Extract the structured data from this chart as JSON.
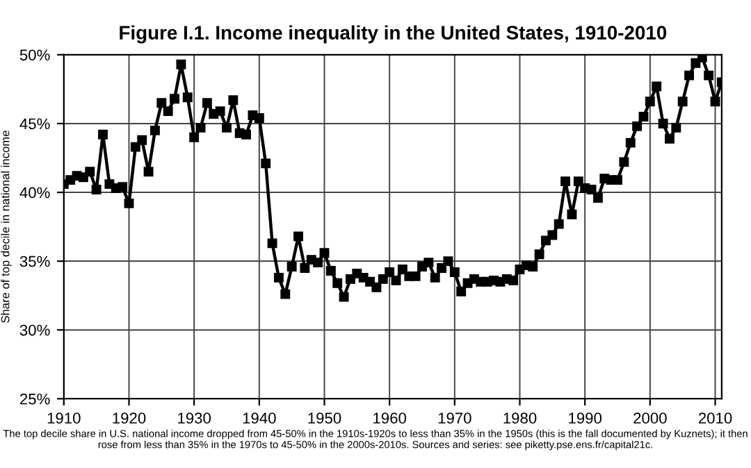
{
  "chart_data": {
    "type": "line",
    "title": "Figure I.1. Income inequality in the United States, 1910-2010",
    "ylabel": "Share of top decile in national income",
    "annotations": [
      "The top decile share in U.S. national income dropped from 45-50% in the 1910s-1920s to less than 35% in the 1950s (this is the fall documented by Kuznets); it then rose from less than 35% in the 1970s to 45-50% in the 2000s-2010s. Sources and series: see piketty.pse.ens.fr/capital21c."
    ],
    "x": [
      1910,
      1911,
      1912,
      1913,
      1914,
      1915,
      1916,
      1917,
      1918,
      1919,
      1920,
      1921,
      1922,
      1923,
      1924,
      1925,
      1926,
      1927,
      1928,
      1929,
      1930,
      1931,
      1932,
      1933,
      1934,
      1935,
      1936,
      1937,
      1938,
      1939,
      1940,
      1941,
      1942,
      1943,
      1944,
      1945,
      1946,
      1947,
      1948,
      1949,
      1950,
      1951,
      1952,
      1953,
      1954,
      1955,
      1956,
      1957,
      1958,
      1959,
      1960,
      1961,
      1962,
      1963,
      1964,
      1965,
      1966,
      1967,
      1968,
      1969,
      1970,
      1971,
      1972,
      1973,
      1974,
      1975,
      1976,
      1977,
      1978,
      1979,
      1980,
      1981,
      1982,
      1983,
      1984,
      1985,
      1986,
      1987,
      1988,
      1989,
      1990,
      1991,
      1992,
      1993,
      1994,
      1995,
      1996,
      1997,
      1998,
      1999,
      2000,
      2001,
      2002,
      2003,
      2004,
      2005,
      2006,
      2007,
      2008,
      2009,
      2010,
      2011
    ],
    "series": [
      {
        "color": "#000000",
        "values": [
          40.6,
          40.9,
          41.2,
          41.1,
          41.5,
          40.2,
          44.2,
          40.6,
          40.3,
          40.4,
          39.2,
          43.3,
          43.8,
          41.5,
          44.5,
          46.5,
          45.9,
          46.8,
          49.3,
          46.9,
          44.0,
          44.7,
          46.5,
          45.7,
          45.9,
          44.7,
          46.7,
          44.3,
          44.2,
          45.6,
          45.4,
          42.1,
          36.3,
          33.8,
          32.6,
          34.6,
          36.8,
          34.5,
          35.1,
          34.9,
          35.6,
          34.3,
          33.4,
          32.4,
          33.7,
          34.1,
          33.8,
          33.5,
          33.1,
          33.7,
          34.2,
          33.6,
          34.4,
          33.9,
          33.9,
          34.6,
          34.9,
          33.8,
          34.5,
          35.0,
          34.2,
          32.8,
          33.4,
          33.7,
          33.5,
          33.5,
          33.6,
          33.5,
          33.7,
          33.6,
          34.4,
          34.7,
          34.6,
          35.5,
          36.5,
          36.9,
          37.7,
          40.8,
          38.4,
          40.8,
          40.3,
          40.2,
          39.6,
          41.0,
          40.9,
          40.9,
          42.2,
          43.6,
          44.8,
          45.5,
          46.6,
          47.7,
          45.0,
          43.9,
          44.7,
          46.6,
          48.5,
          49.4,
          49.8,
          48.5,
          46.6,
          48.0
        ]
      }
    ],
    "xlim": [
      1910,
      2011
    ],
    "xticks": [
      1910,
      1920,
      1930,
      1940,
      1950,
      1960,
      1970,
      1980,
      1990,
      2000,
      2010
    ],
    "ylim": [
      25,
      50
    ],
    "yticks": [
      {
        "value": 25,
        "label": "25%"
      },
      {
        "value": 30,
        "label": "30%"
      },
      {
        "value": 35,
        "label": "35%"
      },
      {
        "value": 40,
        "label": "40%"
      },
      {
        "value": 45,
        "label": "45%"
      },
      {
        "value": 50,
        "label": "50%"
      }
    ],
    "grid": true,
    "marker": "square",
    "line_style": "solid",
    "legend": false
  }
}
